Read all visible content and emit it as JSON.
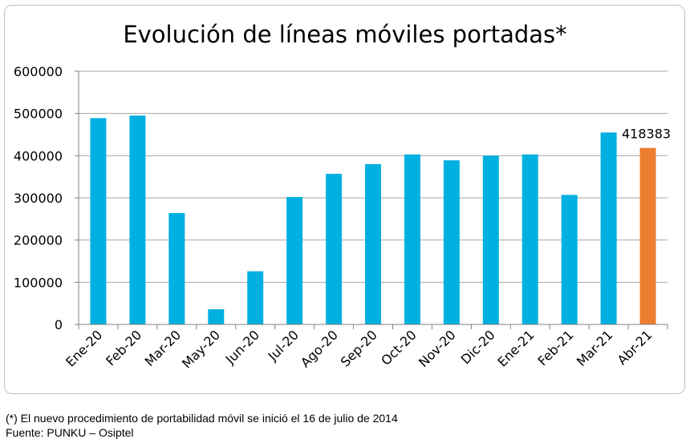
{
  "chart_data": {
    "type": "bar",
    "title": "Evolución de líneas móviles portadas*",
    "xlabel": "",
    "ylabel": "",
    "ylim": [
      0,
      600000
    ],
    "yticks": [
      0,
      100000,
      200000,
      300000,
      400000,
      500000,
      600000
    ],
    "grid": true,
    "legend": "none",
    "categories": [
      "Ene-20",
      "Feb-20",
      "Mar-20",
      "May-20",
      "Jun-20",
      "Jul-20",
      "Ago-20",
      "Sep-20",
      "Oct-20",
      "Nov-20",
      "Dic-20",
      "Ene-21",
      "Feb-21",
      "Mar-21",
      "Abr-21"
    ],
    "values": [
      489000,
      495000,
      264000,
      36000,
      126000,
      302000,
      357000,
      380000,
      403000,
      389000,
      400000,
      403000,
      307000,
      455000,
      418383
    ],
    "colors": {
      "default": "#00b0e0",
      "highlight": "#ed7d31",
      "gridline": "#a6a6a6",
      "axis": "#808080"
    },
    "highlight_index": 14,
    "data_labels": [
      {
        "index": 14,
        "text": "418383"
      }
    ]
  },
  "footnotes": {
    "note": "(*) El nuevo procedimiento de portabilidad móvil se inició el 16 de julio de 2014",
    "source": "Fuente: PUNKU – Osiptel"
  }
}
